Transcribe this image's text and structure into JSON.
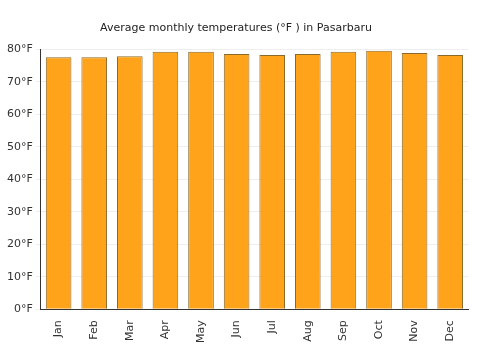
{
  "chart_data": {
    "type": "bar",
    "title": "Average monthly temperatures (°F ) in Pasarbaru",
    "categories": [
      "Jan",
      "Feb",
      "Mar",
      "Apr",
      "May",
      "Jun",
      "Jul",
      "Aug",
      "Sep",
      "Oct",
      "Nov",
      "Dec"
    ],
    "values": [
      77.5,
      77.5,
      77.8,
      79.2,
      79.2,
      78.5,
      78.2,
      78.5,
      79.2,
      79.5,
      78.8,
      78.2
    ],
    "color": "#ffa31a",
    "ylim": [
      0,
      80
    ],
    "yticks": [
      {
        "value": 0,
        "label": "0°F"
      },
      {
        "value": 10,
        "label": "10°F"
      },
      {
        "value": 20,
        "label": "20°F"
      },
      {
        "value": 30,
        "label": "30°F"
      },
      {
        "value": 40,
        "label": "40°F"
      },
      {
        "value": 50,
        "label": "50°F"
      },
      {
        "value": 60,
        "label": "60°F"
      },
      {
        "value": 70,
        "label": "70°F"
      },
      {
        "value": 80,
        "label": "80°F"
      }
    ],
    "grid": true
  }
}
